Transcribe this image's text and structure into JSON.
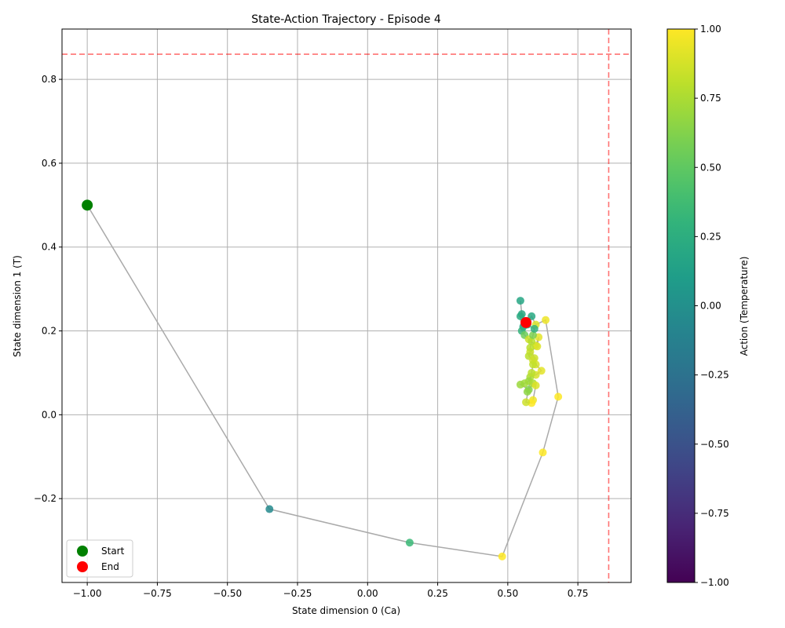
{
  "chart_data": {
    "type": "scatter",
    "title": "State-Action Trajectory - Episode 4",
    "xlabel": "State dimension 0 (Ca)",
    "ylabel": "State dimension 1 (T)",
    "xlim": [
      -1.09,
      0.94
    ],
    "ylim": [
      -0.4,
      0.92
    ],
    "xticks": [
      -1.0,
      -0.75,
      -0.5,
      -0.25,
      0.0,
      0.25,
      0.5,
      0.75
    ],
    "xtick_labels": [
      "−1.00",
      "−0.75",
      "−0.50",
      "−0.25",
      "0.00",
      "0.25",
      "0.50",
      "0.75"
    ],
    "yticks": [
      -0.2,
      0.0,
      0.2,
      0.4,
      0.6,
      0.8
    ],
    "ytick_labels": [
      "−0.2",
      "0.0",
      "0.2",
      "0.4",
      "0.6",
      "0.8"
    ],
    "grid": true,
    "reference_lines": {
      "vertical_x": 0.86,
      "horizontal_y": 0.86,
      "color": "#ff0000",
      "style": "dashed"
    },
    "colormap": "viridis",
    "colorbar": {
      "label": "Action (Temperature)",
      "range": [
        -1.0,
        1.0
      ],
      "ticks": [
        -1.0,
        -0.75,
        -0.5,
        -0.25,
        0.0,
        0.25,
        0.5,
        0.75,
        1.0
      ],
      "tick_labels": [
        "−1.00",
        "−0.75",
        "−0.50",
        "−0.25",
        "0.00",
        "0.25",
        "0.50",
        "0.75",
        "1.00"
      ]
    },
    "trajectory_color": "#aaaaaa",
    "points": [
      {
        "x": -1.0,
        "y": 0.5,
        "a": 0.1
      },
      {
        "x": -0.35,
        "y": -0.225,
        "a": -0.05
      },
      {
        "x": 0.15,
        "y": -0.305,
        "a": 0.35
      },
      {
        "x": 0.48,
        "y": -0.338,
        "a": 1.0
      },
      {
        "x": 0.625,
        "y": -0.09,
        "a": 1.0
      },
      {
        "x": 0.68,
        "y": 0.043,
        "a": 1.0
      },
      {
        "x": 0.635,
        "y": 0.226,
        "a": 0.95
      },
      {
        "x": 0.6,
        "y": 0.215,
        "a": 0.9
      },
      {
        "x": 0.585,
        "y": 0.235,
        "a": 0.2
      },
      {
        "x": 0.555,
        "y": 0.21,
        "a": 0.15
      },
      {
        "x": 0.545,
        "y": 0.272,
        "a": 0.18
      },
      {
        "x": 0.55,
        "y": 0.24,
        "a": 0.2
      },
      {
        "x": 0.545,
        "y": 0.235,
        "a": 0.22
      },
      {
        "x": 0.55,
        "y": 0.2,
        "a": 0.3
      },
      {
        "x": 0.56,
        "y": 0.19,
        "a": 0.55
      },
      {
        "x": 0.575,
        "y": 0.18,
        "a": 0.85
      },
      {
        "x": 0.6,
        "y": 0.165,
        "a": 0.88
      },
      {
        "x": 0.61,
        "y": 0.185,
        "a": 0.92
      },
      {
        "x": 0.605,
        "y": 0.163,
        "a": 0.9
      },
      {
        "x": 0.58,
        "y": 0.15,
        "a": 0.85
      },
      {
        "x": 0.575,
        "y": 0.14,
        "a": 0.8
      },
      {
        "x": 0.59,
        "y": 0.13,
        "a": 0.86
      },
      {
        "x": 0.6,
        "y": 0.12,
        "a": 0.88
      },
      {
        "x": 0.62,
        "y": 0.105,
        "a": 0.92
      },
      {
        "x": 0.6,
        "y": 0.095,
        "a": 0.88
      },
      {
        "x": 0.58,
        "y": 0.09,
        "a": 0.75
      },
      {
        "x": 0.575,
        "y": 0.08,
        "a": 0.7
      },
      {
        "x": 0.56,
        "y": 0.075,
        "a": 0.72
      },
      {
        "x": 0.545,
        "y": 0.072,
        "a": 0.7
      },
      {
        "x": 0.575,
        "y": 0.06,
        "a": 0.62
      },
      {
        "x": 0.57,
        "y": 0.055,
        "a": 0.66
      },
      {
        "x": 0.59,
        "y": 0.075,
        "a": 0.75
      },
      {
        "x": 0.6,
        "y": 0.07,
        "a": 0.9
      },
      {
        "x": 0.59,
        "y": 0.035,
        "a": 0.95
      },
      {
        "x": 0.585,
        "y": 0.028,
        "a": 1.0
      },
      {
        "x": 0.565,
        "y": 0.03,
        "a": 0.85
      },
      {
        "x": 0.585,
        "y": 0.1,
        "a": 0.8
      },
      {
        "x": 0.59,
        "y": 0.12,
        "a": 0.82
      },
      {
        "x": 0.595,
        "y": 0.135,
        "a": 0.85
      },
      {
        "x": 0.58,
        "y": 0.16,
        "a": 0.8
      },
      {
        "x": 0.585,
        "y": 0.175,
        "a": 0.78
      },
      {
        "x": 0.59,
        "y": 0.19,
        "a": 0.6
      },
      {
        "x": 0.595,
        "y": 0.205,
        "a": 0.3
      },
      {
        "x": 0.57,
        "y": 0.215,
        "a": 0.25
      },
      {
        "x": 0.565,
        "y": 0.22,
        "a": 0.2
      }
    ],
    "start": {
      "x": -1.0,
      "y": 0.5,
      "color": "#008000",
      "label": "Start"
    },
    "end": {
      "x": 0.565,
      "y": 0.22,
      "color": "#ff0000",
      "label": "End"
    },
    "legend": {
      "position": "lower-left",
      "entries": [
        "Start",
        "End"
      ]
    }
  }
}
